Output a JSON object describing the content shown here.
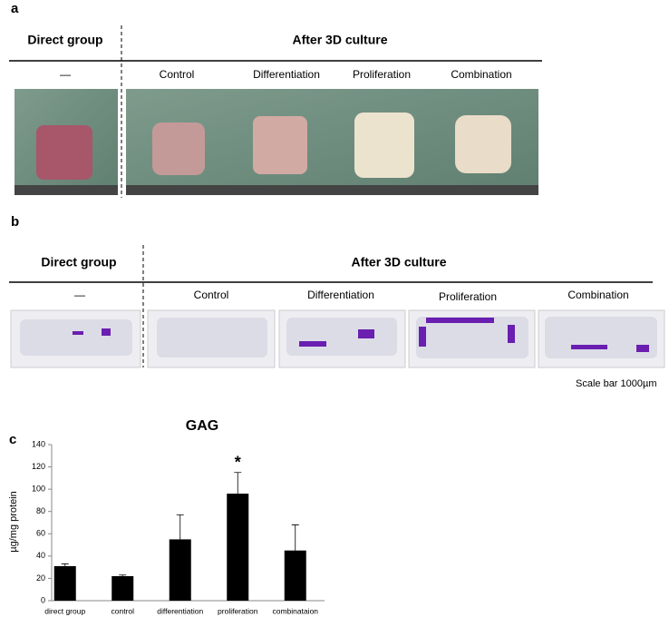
{
  "panels": {
    "a": {
      "label": "a",
      "left_header": "Direct group",
      "right_header": "After 3D culture",
      "columns": [
        "—",
        "Control",
        "Differentiation",
        "Proliferation",
        "Combination"
      ]
    },
    "b": {
      "label": "b",
      "left_header": "Direct group",
      "right_header": "After 3D culture",
      "columns": [
        "—",
        "Control",
        "Differentiation",
        "Proliferation",
        "Combination"
      ],
      "scale_note": "Scale bar  1000µm"
    },
    "c": {
      "label": "c"
    }
  },
  "chart_data": {
    "type": "bar",
    "title": "GAG",
    "y_label": "µg/mg protein",
    "categories": [
      "direct group",
      "control",
      "differentiation",
      "proliferation",
      "combinataion"
    ],
    "values": [
      31,
      22,
      55,
      96,
      45
    ],
    "errors": [
      2,
      1,
      22,
      19,
      23
    ],
    "color": "#000000",
    "annotations": [
      {
        "category": "proliferation",
        "text": "*"
      }
    ],
    "ylim": [
      0,
      140
    ],
    "yticks": [
      0,
      20,
      40,
      60,
      80,
      100,
      120,
      140
    ]
  }
}
